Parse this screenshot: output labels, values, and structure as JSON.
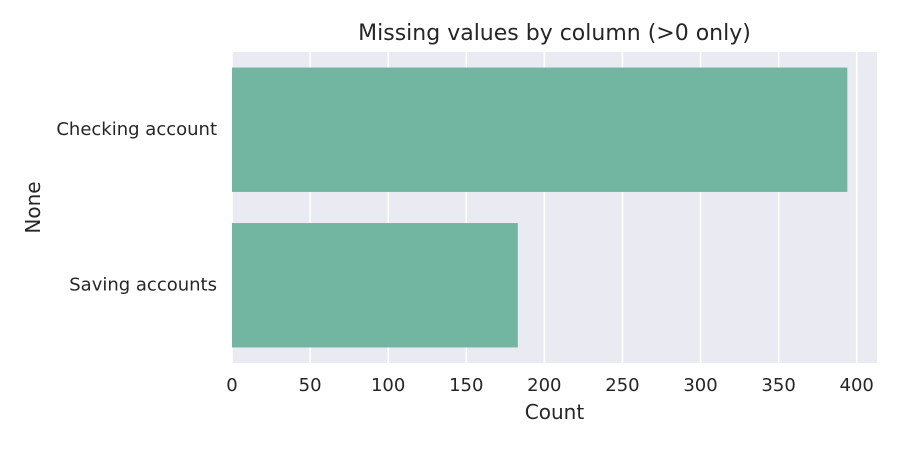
{
  "chart_data": {
    "type": "bar",
    "orientation": "horizontal",
    "title": "Missing values by column (>0 only)",
    "xlabel": "Count",
    "ylabel": "None",
    "categories": [
      "Checking account",
      "Saving accounts"
    ],
    "values": [
      394,
      183
    ],
    "xlim": [
      0,
      413
    ],
    "xticks": [
      0,
      50,
      100,
      150,
      200,
      250,
      300,
      350,
      400
    ],
    "xtick_labels": [
      "0",
      "50",
      "100",
      "150",
      "200",
      "250",
      "300",
      "350",
      "400"
    ],
    "grid": true,
    "colors": {
      "bar": "#72b6a1",
      "plot_background": "#eaeaf2",
      "grid": "#ffffff",
      "text": "#262626"
    }
  }
}
